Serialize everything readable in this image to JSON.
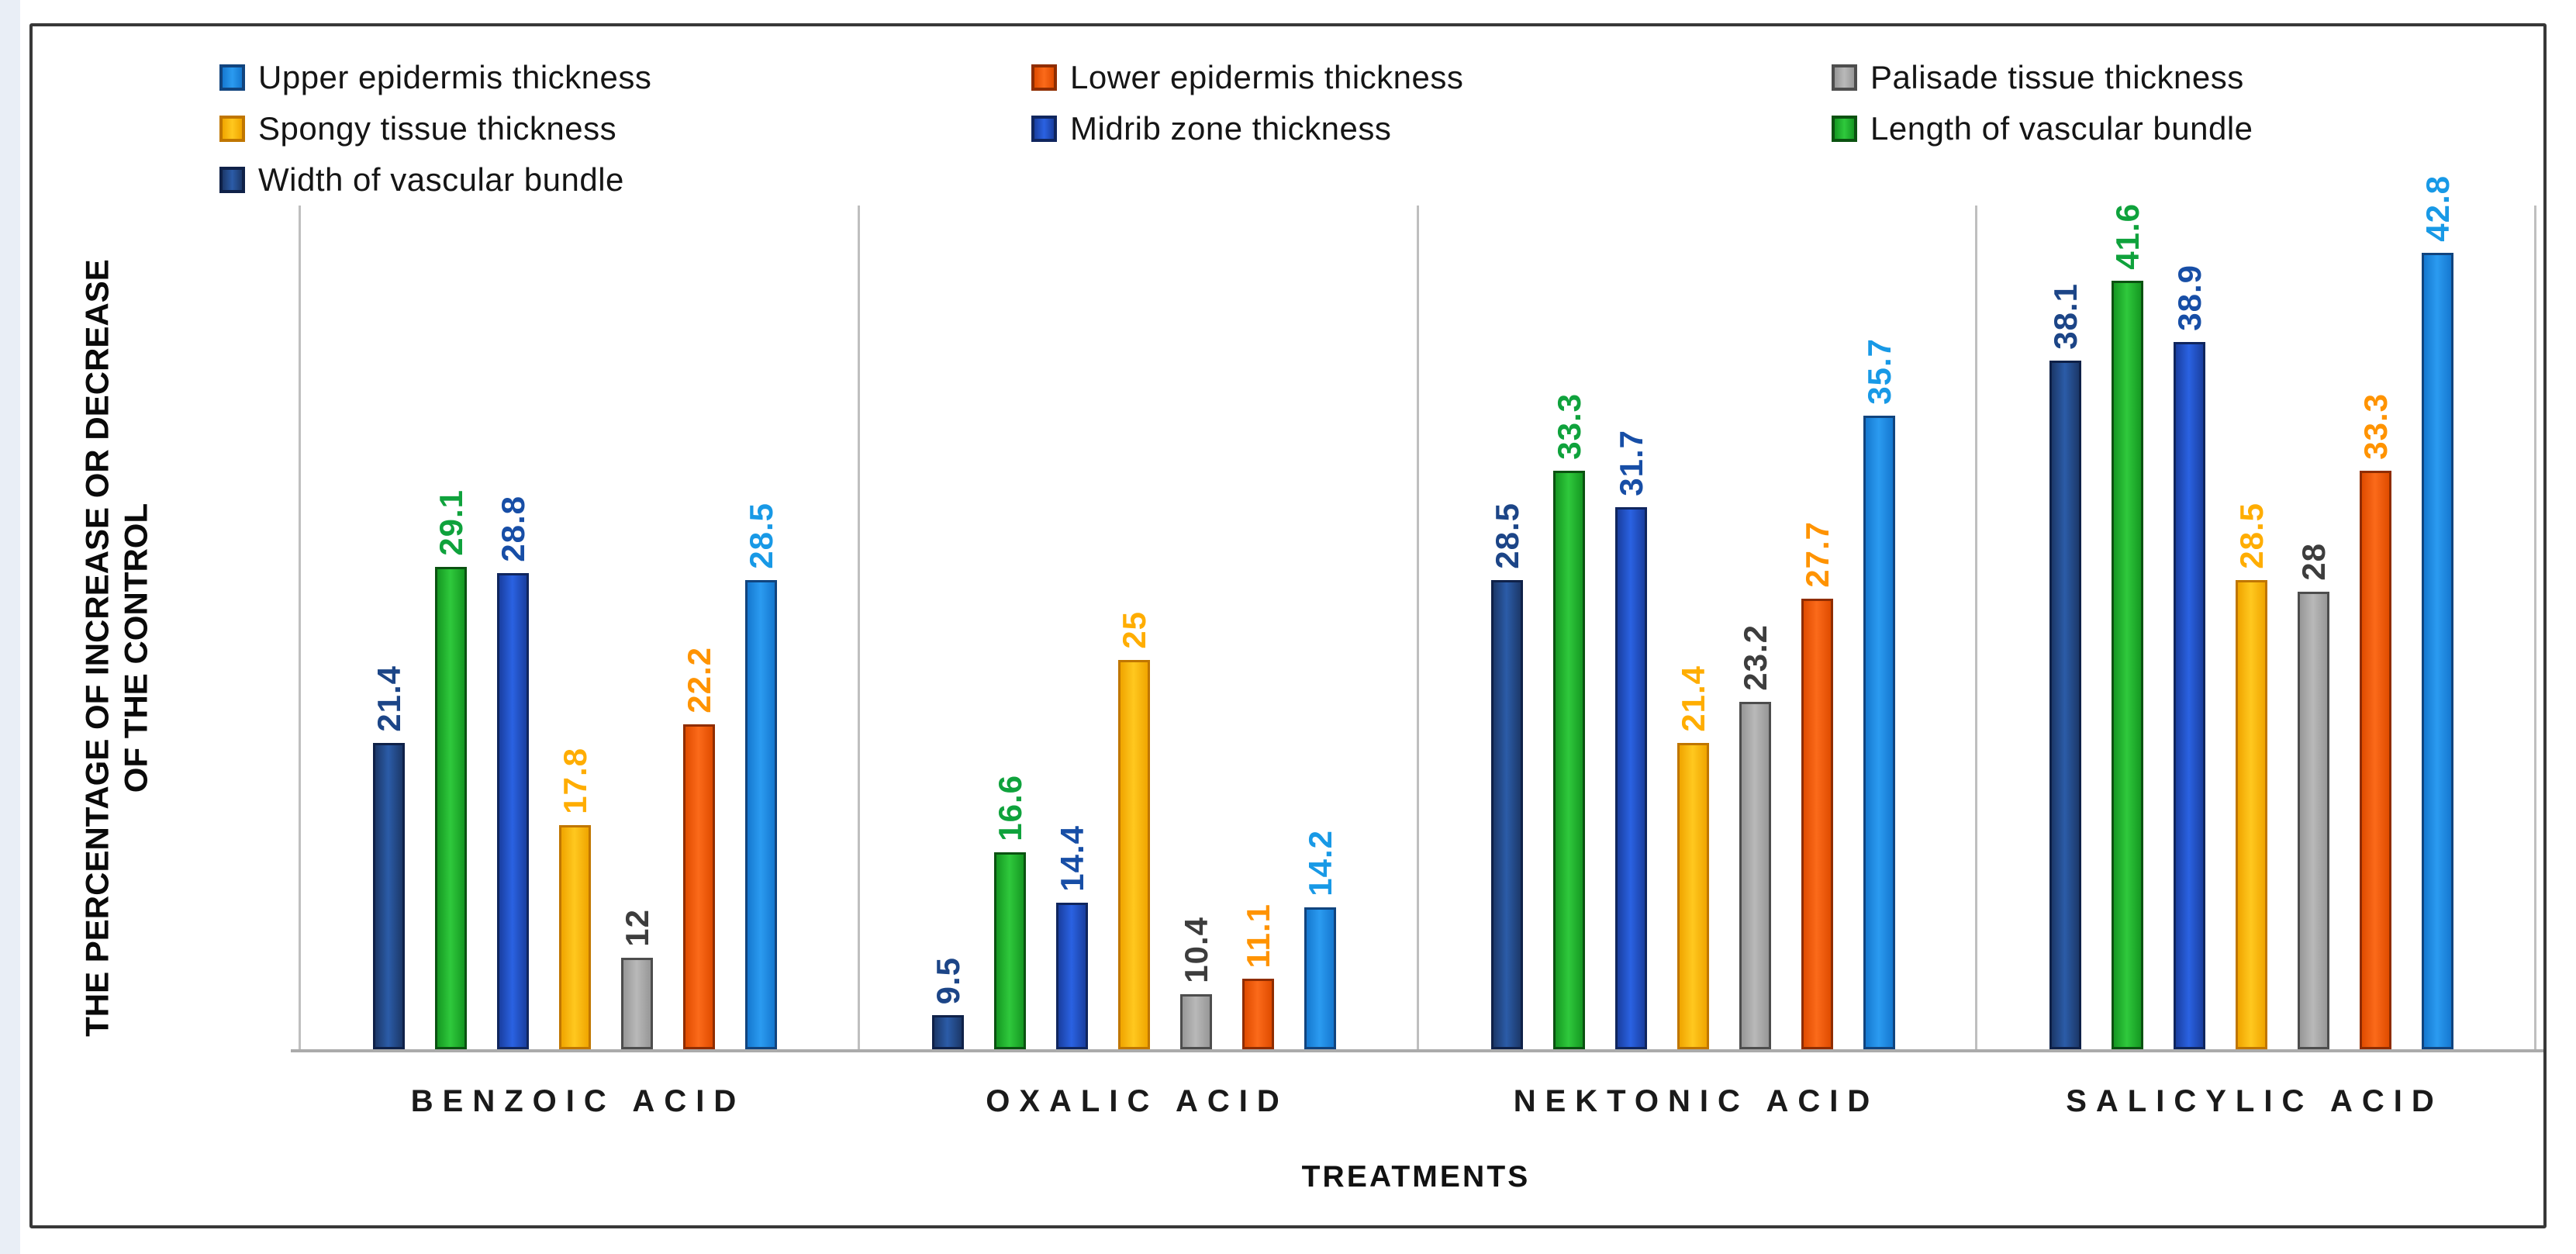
{
  "colors": {
    "frame_border": "#383838",
    "category_separator": "#bfbfbf",
    "x_axis_line": "#ababab",
    "page_strip": "#e9eef6"
  },
  "chart_data": {
    "type": "bar",
    "categories": [
      "BENZOIC ACID",
      "OXALIC ACID",
      "NEKTONIC ACID",
      "SALICYLIC ACID"
    ],
    "series": [
      {
        "name": "Width of vascular bundle",
        "values": [
          21.4,
          9.5,
          28.5,
          38.1
        ],
        "fill": "#2b5ca8",
        "edge": "#1c3869",
        "border": "#0f2148",
        "label_color": "#1c4587"
      },
      {
        "name": "Length of vascular bundle",
        "values": [
          29.1,
          16.6,
          33.3,
          41.6
        ],
        "fill": "#2fc93c",
        "edge": "#159822",
        "border": "#0b5211",
        "label_color": "#0fa23c"
      },
      {
        "name": "Midrib zone thickness",
        "values": [
          28.8,
          14.4,
          31.7,
          38.9
        ],
        "fill": "#2a62e2",
        "edge": "#1a3fa0",
        "border": "#10265e",
        "label_color": "#174ea6"
      },
      {
        "name": "Spongy tissue thickness",
        "values": [
          17.8,
          25,
          21.4,
          28.5
        ],
        "fill": "#ffc81f",
        "edge": "#f0a500",
        "border": "#c07600",
        "label_color": "#ffad00"
      },
      {
        "name": "Palisade tissue thickness",
        "values": [
          12,
          10.4,
          23.2,
          28
        ],
        "fill": "#b9b9b9",
        "edge": "#979797",
        "border": "#4d4d4d",
        "label_color": "#3d3d3d"
      },
      {
        "name": "Lower epidermis thickness",
        "values": [
          22.2,
          11.1,
          27.7,
          33.3
        ],
        "fill": "#fb6a1a",
        "edge": "#e04c00",
        "border": "#8f2d00",
        "label_color": "#ff9300"
      },
      {
        "name": "Upper epidermis thickness",
        "values": [
          28.5,
          14.2,
          35.7,
          42.8
        ],
        "fill": "#2b9bf0",
        "edge": "#1578d0",
        "border": "#11447e",
        "label_color": "#1899e6"
      }
    ],
    "legend_order": [
      "Upper epidermis thickness",
      "Lower epidermis thickness",
      "Palisade tissue thickness",
      "Spongy tissue thickness",
      "Midrib zone thickness",
      "Length of vascular bundle",
      "Width of vascular bundle"
    ],
    "legend_position": "top",
    "xlabel": "TREATMENTS",
    "ylabel": "THE PERCENTAGE OF INCREASE OR DECREASE OF THE CONTROL",
    "ylabel_lines": [
      "THE PERCENTAGE OF INCREASE OR DECREASE",
      "OF THE CONTROL"
    ],
    "ylim": [
      8,
      45
    ],
    "value_label_rotation": -90,
    "gridlines": "vertical-category-separators"
  }
}
